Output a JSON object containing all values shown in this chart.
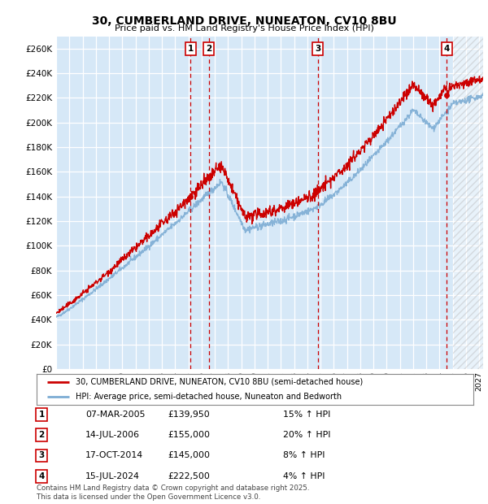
{
  "title": "30, CUMBERLAND DRIVE, NUNEATON, CV10 8BU",
  "subtitle": "Price paid vs. HM Land Registry's House Price Index (HPI)",
  "yticks": [
    0,
    20000,
    40000,
    60000,
    80000,
    100000,
    120000,
    140000,
    160000,
    180000,
    200000,
    220000,
    240000,
    260000
  ],
  "ylim": [
    0,
    270000
  ],
  "xlim": [
    1995.0,
    2027.3
  ],
  "bg_color": "#d6e8f7",
  "grid_color": "#ffffff",
  "red_color": "#cc0000",
  "blue_color": "#7dadd4",
  "legend_labels": [
    "30, CUMBERLAND DRIVE, NUNEATON, CV10 8BU (semi-detached house)",
    "HPI: Average price, semi-detached house, Nuneaton and Bedworth"
  ],
  "sales": [
    {
      "num": 1,
      "date_str": "07-MAR-2005",
      "date_dec": 2005.18,
      "price": 139950,
      "pct": "15% ↑ HPI"
    },
    {
      "num": 2,
      "date_str": "14-JUL-2006",
      "date_dec": 2006.54,
      "price": 155000,
      "pct": "20% ↑ HPI"
    },
    {
      "num": 3,
      "date_str": "17-OCT-2014",
      "date_dec": 2014.79,
      "price": 145000,
      "pct": "8% ↑ HPI"
    },
    {
      "num": 4,
      "date_str": "15-JUL-2024",
      "date_dec": 2024.54,
      "price": 222500,
      "pct": "4% ↑ HPI"
    }
  ],
  "footer": "Contains HM Land Registry data © Crown copyright and database right 2025.\nThis data is licensed under the Open Government Licence v3.0.",
  "hatch_start": 2025.0,
  "hatch_end": 2027.5
}
